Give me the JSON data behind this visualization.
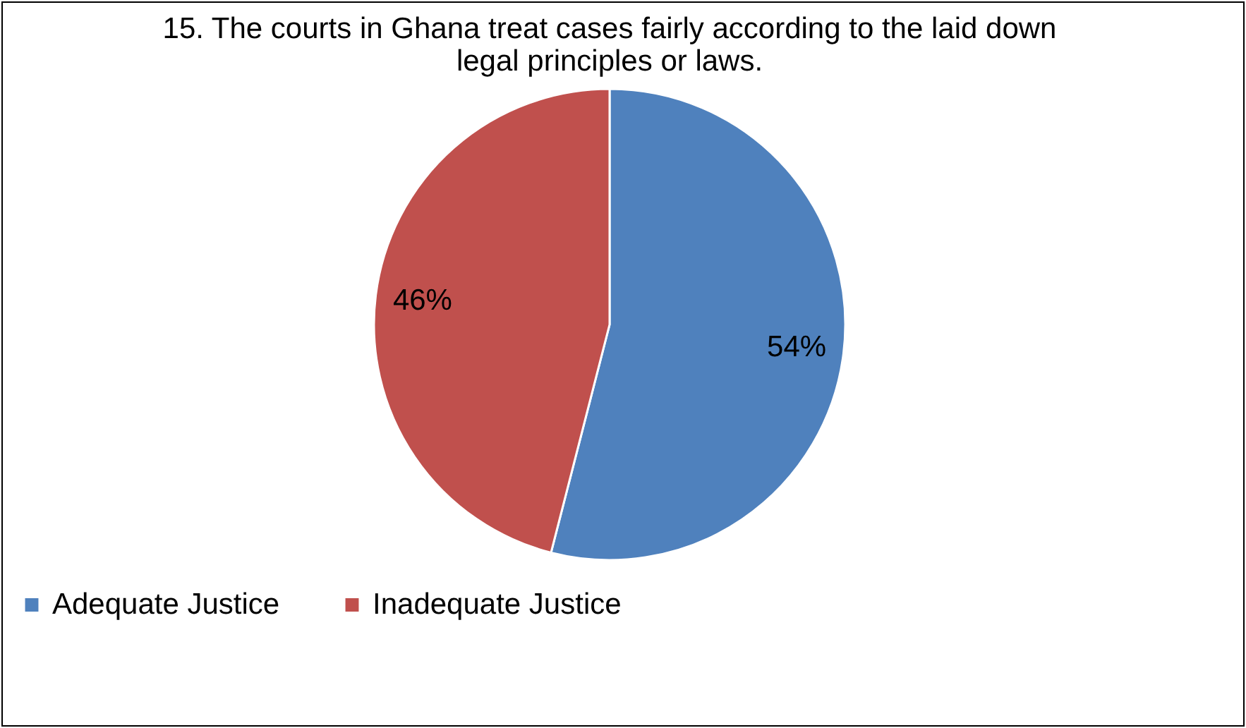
{
  "chart_data": {
    "type": "pie",
    "title": "15.  The courts in Ghana treat cases fairly according to the laid down\nlegal principles or laws.",
    "categories": [
      "Adequate Justice",
      "Inadequate  Justice"
    ],
    "values": [
      54,
      46
    ],
    "colors": [
      "#4f81bd",
      "#c0504d"
    ],
    "value_labels": [
      "54%",
      "46%"
    ],
    "legend": "bottom"
  }
}
